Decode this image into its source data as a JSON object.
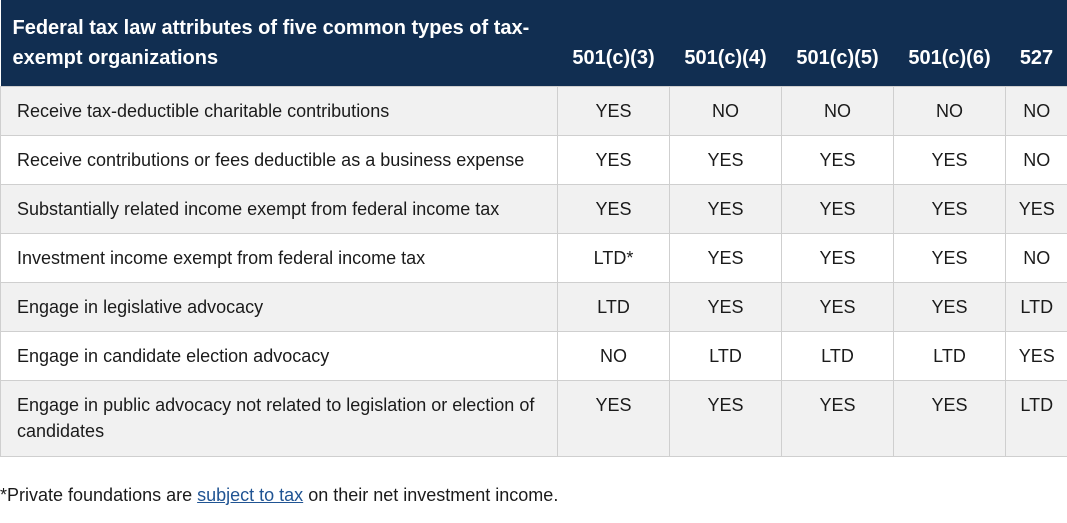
{
  "table": {
    "title": "Federal tax law attributes of five common types of tax-exempt organizations",
    "columns": [
      "501(c)(3)",
      "501(c)(4)",
      "501(c)(5)",
      "501(c)(6)",
      "527"
    ],
    "rows": [
      {
        "label": "Receive tax-deductible charitable contributions",
        "values": [
          "YES",
          "NO",
          "NO",
          "NO",
          "NO"
        ]
      },
      {
        "label": "Receive contributions or fees deductible as a business expense",
        "values": [
          "YES",
          "YES",
          "YES",
          "YES",
          "NO"
        ]
      },
      {
        "label": "Substantially related income exempt from federal income tax",
        "values": [
          "YES",
          "YES",
          "YES",
          "YES",
          "YES"
        ]
      },
      {
        "label": "Investment income exempt from federal income tax",
        "values": [
          "LTD*",
          "YES",
          "YES",
          "YES",
          "NO"
        ]
      },
      {
        "label": "Engage in legislative advocacy",
        "values": [
          "LTD",
          "YES",
          "YES",
          "YES",
          "LTD"
        ]
      },
      {
        "label": "Engage in candidate election advocacy",
        "values": [
          "NO",
          "LTD",
          "LTD",
          "LTD",
          "YES"
        ]
      },
      {
        "label": "Engage in public advocacy not related to legislation or election of candidates",
        "values": [
          "YES",
          "YES",
          "YES",
          "YES",
          "LTD"
        ]
      }
    ]
  },
  "footnote": {
    "prefix": "*Private foundations are ",
    "link_text": "subject to tax",
    "suffix": " on their net investment income."
  },
  "colors": {
    "header_bg": "#112e51",
    "header_text": "#ffffff",
    "row_alt_bg": "#f1f1f1",
    "link": "#205493"
  }
}
